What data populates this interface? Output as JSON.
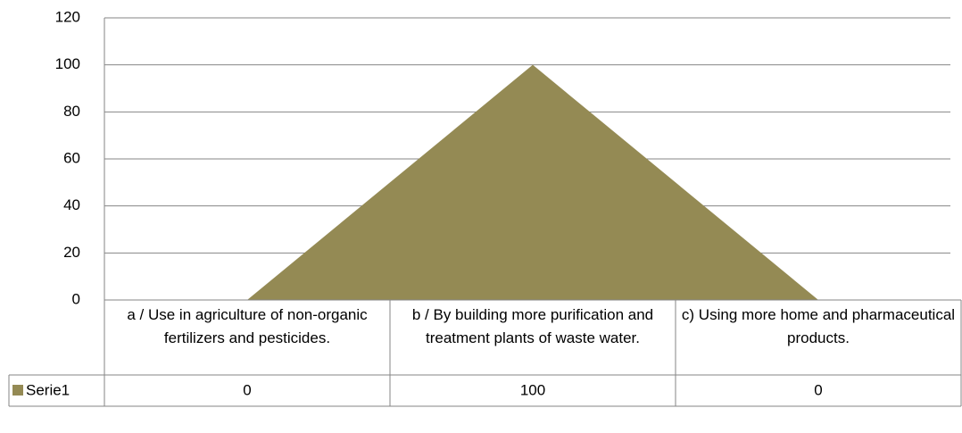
{
  "chart_data": {
    "type": "area",
    "categories": [
      "a / Use in agriculture of non-organic fertilizers and pesticides.",
      "b / By building more purification and treatment plants of waste water.",
      "c)  Using more home and pharmaceutical products."
    ],
    "series": [
      {
        "name": "Serie1",
        "color": "#948a54",
        "values": [
          0,
          100,
          0
        ]
      }
    ],
    "ylim": [
      0,
      120
    ],
    "yticks": [
      0,
      20,
      40,
      60,
      80,
      100,
      120
    ],
    "grid": true,
    "data_table": true
  }
}
